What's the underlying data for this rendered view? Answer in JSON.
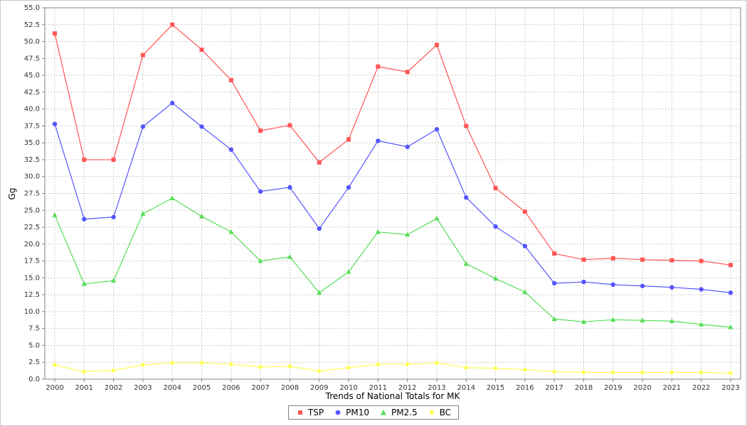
{
  "chart_data": {
    "type": "line",
    "title": "",
    "xlabel": "Trends of National Totals for MK",
    "ylabel": "Gg",
    "ylim": [
      0,
      55
    ],
    "ytick_step": 2.5,
    "grid": true,
    "legend_position": "bottom",
    "x": [
      2000,
      2001,
      2002,
      2003,
      2004,
      2005,
      2006,
      2007,
      2008,
      2009,
      2010,
      2011,
      2012,
      2013,
      2014,
      2015,
      2016,
      2017,
      2018,
      2019,
      2020,
      2021,
      2022,
      2023
    ],
    "series": [
      {
        "name": "TSP",
        "color": "#ff5555",
        "marker": "square",
        "values": [
          51.2,
          32.5,
          32.5,
          48.0,
          52.5,
          48.8,
          44.3,
          36.8,
          37.6,
          32.1,
          35.5,
          46.3,
          45.5,
          49.5,
          37.5,
          28.3,
          24.8,
          18.6,
          17.7,
          17.9,
          17.7,
          17.6,
          17.5,
          16.9
        ]
      },
      {
        "name": "PM10",
        "color": "#5555ff",
        "marker": "circle",
        "values": [
          37.8,
          23.7,
          24.0,
          37.4,
          40.9,
          37.4,
          34.0,
          27.8,
          28.4,
          22.3,
          28.4,
          35.3,
          34.4,
          37.0,
          26.9,
          22.6,
          19.7,
          14.2,
          14.4,
          14.0,
          13.8,
          13.6,
          13.3,
          12.8
        ]
      },
      {
        "name": "PM2.5",
        "color": "#55dd55",
        "marker": "triangle",
        "values": [
          24.3,
          14.1,
          14.6,
          24.5,
          26.8,
          24.1,
          21.8,
          17.5,
          18.1,
          12.8,
          15.9,
          21.8,
          21.4,
          23.8,
          17.1,
          14.9,
          12.9,
          8.9,
          8.5,
          8.8,
          8.7,
          8.6,
          8.1,
          7.7
        ]
      },
      {
        "name": "BC",
        "color": "#ffff55",
        "marker": "diamond",
        "values": [
          2.1,
          1.1,
          1.3,
          2.1,
          2.4,
          2.4,
          2.2,
          1.8,
          1.9,
          1.2,
          1.7,
          2.2,
          2.2,
          2.4,
          1.7,
          1.6,
          1.4,
          1.1,
          1.0,
          1.0,
          1.0,
          1.0,
          1.0,
          0.9
        ]
      }
    ],
    "style": {
      "grid_color": "#cccccc",
      "plot_border_color": "#808080",
      "tick_label_color": "#333333",
      "background": "#ffffff"
    }
  }
}
